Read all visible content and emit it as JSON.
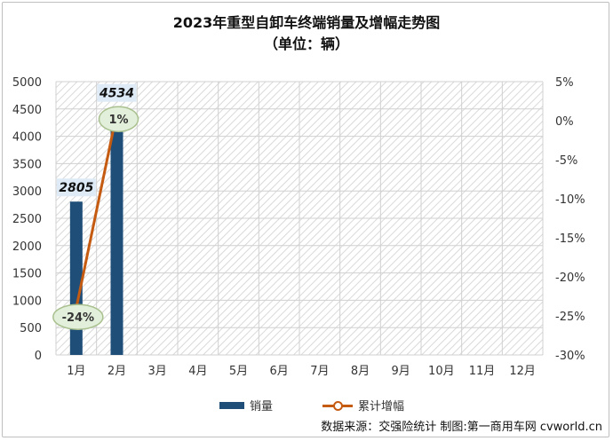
{
  "header": {
    "title": "2023年重型自卸车终端销量及增幅走势图",
    "subtitle": "（单位：辆）"
  },
  "source": "数据来源：交强险统计 制图:第一商用车网 cvworld.cn",
  "colors": {
    "bar": "#1f4e79",
    "line": "#c55a11",
    "bubble": "#e2efda",
    "bar_label_bg": "#deebf7"
  },
  "chart_data": {
    "type": "bar",
    "categories": [
      "1月",
      "2月",
      "3月",
      "4月",
      "5月",
      "6月",
      "7月",
      "8月",
      "9月",
      "10月",
      "11月",
      "12月"
    ],
    "series": [
      {
        "name": "销量",
        "type": "bar",
        "axis": "left",
        "values": [
          2805,
          4534,
          null,
          null,
          null,
          null,
          null,
          null,
          null,
          null,
          null,
          null
        ],
        "labels": [
          "2805",
          "4534"
        ]
      },
      {
        "name": "累计增幅",
        "type": "line",
        "axis": "right",
        "values": [
          -24,
          1,
          null,
          null,
          null,
          null,
          null,
          null,
          null,
          null,
          null,
          null
        ],
        "labels": [
          "-24%",
          "1%"
        ]
      }
    ],
    "y_left": {
      "min": 0,
      "max": 5000,
      "step": 500,
      "ticks": [
        "0",
        "500",
        "1000",
        "1500",
        "2000",
        "2500",
        "3000",
        "3500",
        "4000",
        "4500",
        "5000"
      ]
    },
    "y_right": {
      "min": -30,
      "max": 5,
      "step": 5,
      "ticks": [
        "-30%",
        "-25%",
        "-20%",
        "-15%",
        "-10%",
        "-5%",
        "0%",
        "5%"
      ]
    },
    "grid": true,
    "legend": "bottom"
  }
}
